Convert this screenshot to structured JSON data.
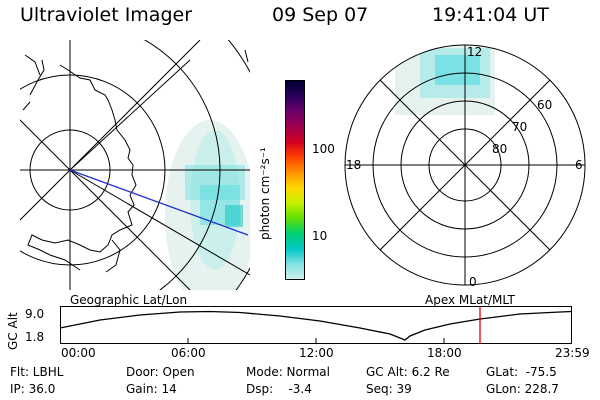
{
  "header": {
    "title": "Ultraviolet Imager",
    "date": "09 Sep 07",
    "time": "19:41:04 UT"
  },
  "colorbar": {
    "unit_label": "photon cm⁻²s⁻¹",
    "ticks": [
      "100",
      "10"
    ],
    "colors": [
      "#000033",
      "#2a005a",
      "#6a006a",
      "#a00050",
      "#d00020",
      "#ff4000",
      "#ff9000",
      "#ffd800",
      "#c8f000",
      "#60e000",
      "#00d070",
      "#00c8c8",
      "#80e0e0",
      "#d0f0f0"
    ]
  },
  "left_panel": {
    "caption": "Geographic Lat/Lon"
  },
  "right_panel": {
    "caption": "Apex MLat/MLT",
    "mlt_labels": {
      "top": "12",
      "bottom": "0",
      "left": "18",
      "right": "6"
    },
    "lat_labels": [
      "60",
      "70",
      "80"
    ]
  },
  "altitude_plot": {
    "ylabel": "GC Alt",
    "ytick_top": "9.0",
    "ytick_bottom": "1.8",
    "xticks": [
      "00:00",
      "06:00",
      "12:00",
      "18:00",
      "23:59"
    ],
    "marker_color": "#e00000"
  },
  "info": {
    "flt": "Flt: LBHL",
    "ip": "IP: 36.0",
    "door": "Door: Open",
    "gain": "Gain: 14",
    "mode": "Mode: Normal",
    "dsp": "Dsp:    -3.4",
    "gcalt": "GC Alt: 6.2 Re",
    "seq": "Seq: 39",
    "glat": "GLat:  -75.5",
    "glon": "GLon: 228.7"
  }
}
